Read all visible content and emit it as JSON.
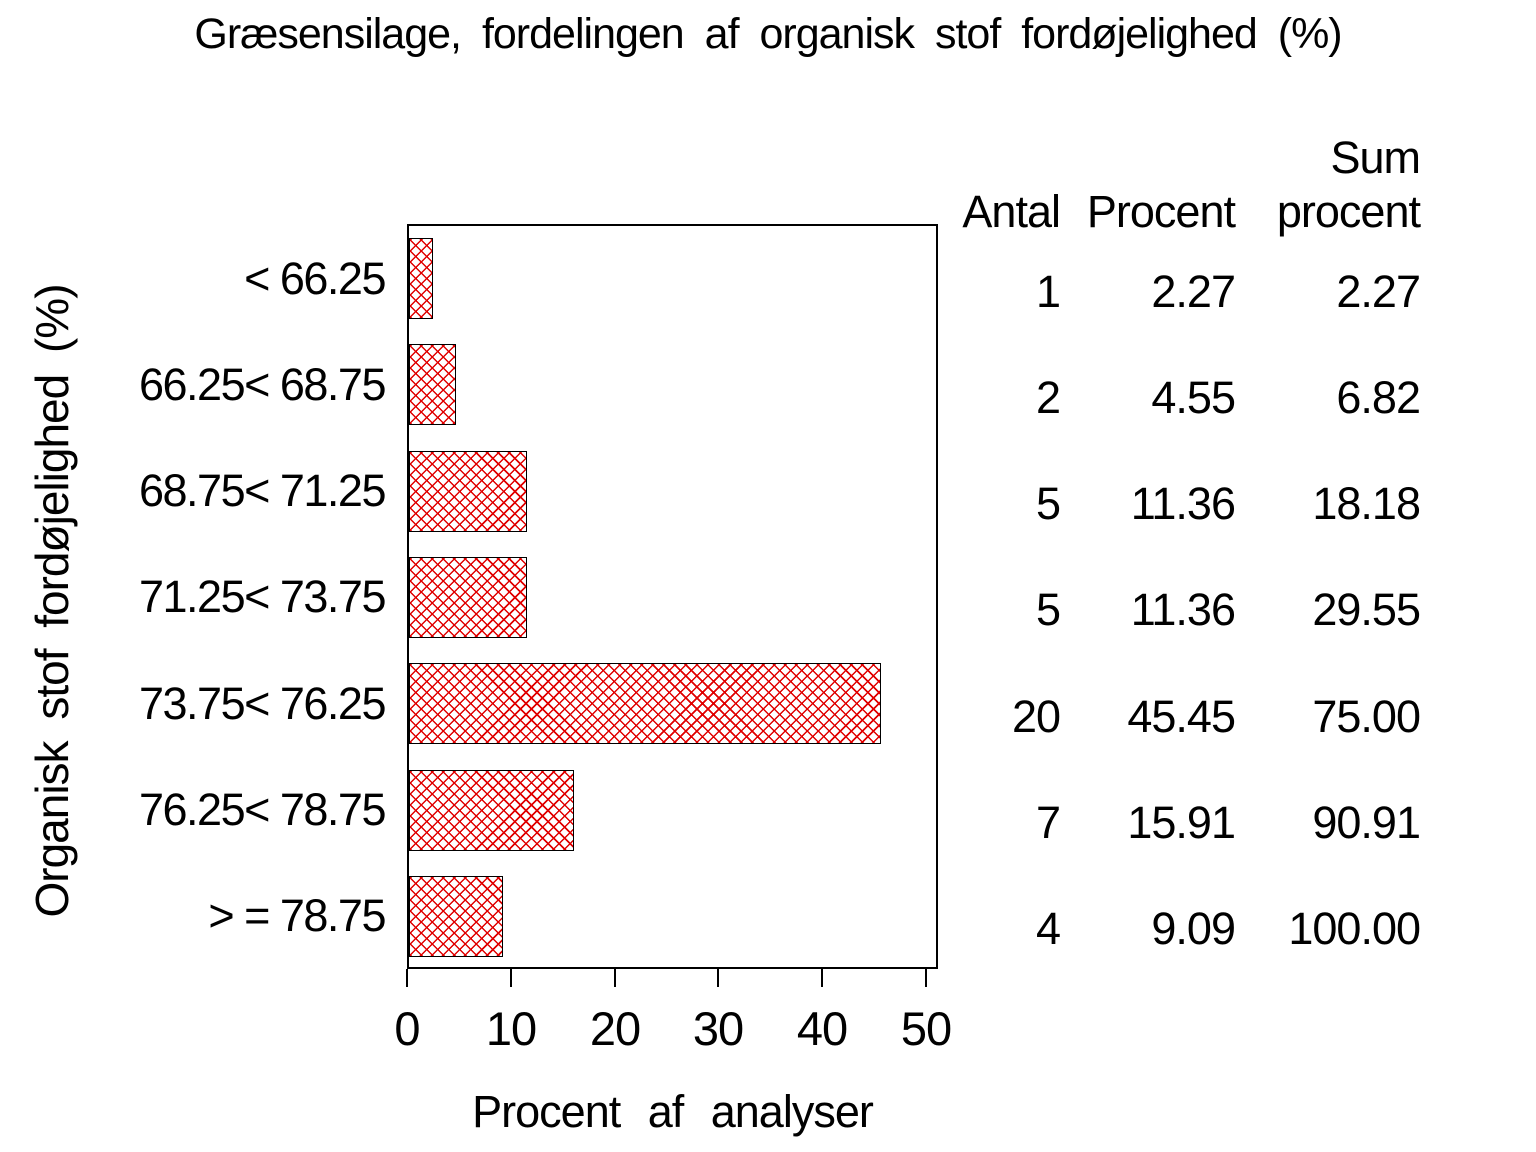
{
  "title": "Græsensilage, fordelingen af organisk stof fordøjelighed (%)",
  "chart_data": {
    "type": "bar",
    "orientation": "horizontal",
    "title": "Græsensilage, fordelingen af organisk stof fordøjelighed (%)",
    "xlabel": "Procent af analyser",
    "ylabel": "Organisk stof fordøjelighed (%)",
    "categories": [
      "< 66.25",
      "66.25< 68.75",
      "68.75< 71.25",
      "71.25< 73.75",
      "73.75< 76.25",
      "76.25< 78.75",
      "> = 78.75"
    ],
    "values": [
      2.27,
      4.55,
      11.36,
      11.36,
      45.45,
      15.91,
      9.09
    ],
    "xlim": [
      0,
      50
    ],
    "xticks": [
      "0",
      "10",
      "20",
      "30",
      "40",
      "50"
    ],
    "grid": false,
    "legend": false,
    "bar_fill_style": "red-crosshatch",
    "bar_color": "#e00000",
    "bar_border_color": "#000000",
    "axis_color": "#000000"
  },
  "table": {
    "headers": {
      "antal": "Antal",
      "procent": "Procent",
      "sum_top": "Sum",
      "sum_bottom": "procent"
    },
    "rows": [
      {
        "antal": "1",
        "procent": "2.27",
        "sum": "2.27"
      },
      {
        "antal": "2",
        "procent": "4.55",
        "sum": "6.82"
      },
      {
        "antal": "5",
        "procent": "11.36",
        "sum": "18.18"
      },
      {
        "antal": "5",
        "procent": "11.36",
        "sum": "29.55"
      },
      {
        "antal": "20",
        "procent": "45.45",
        "sum": "75.00"
      },
      {
        "antal": "7",
        "procent": "15.91",
        "sum": "90.91"
      },
      {
        "antal": "4",
        "procent": "9.09",
        "sum": "100.00"
      }
    ]
  },
  "colors": {
    "background": "#ffffff",
    "text": "#000000",
    "bar_hatch": "#e00000",
    "axis": "#000000"
  }
}
